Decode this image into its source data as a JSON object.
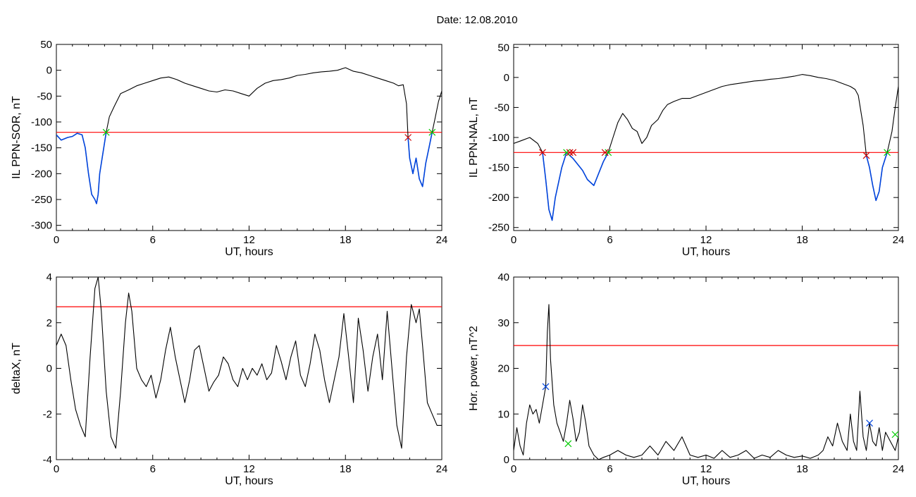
{
  "figure": {
    "title": "Date:  12.08.2010"
  },
  "chart_data": [
    {
      "type": "line",
      "xlabel": "UT, hours",
      "ylabel": "IL PPN-SOR, nT",
      "xlim": [
        0,
        24
      ],
      "ylim": [
        -310,
        50
      ],
      "xticks": [
        "0",
        "6",
        "12",
        "18",
        "24"
      ],
      "yticks": [
        "50",
        "0",
        "-50",
        "-100",
        "-150",
        "-200",
        "-250",
        "-300"
      ],
      "colors": {
        "line": "#000000",
        "event": "#0044dd",
        "threshold": "#ff0000",
        "start_marker": "#00cc00",
        "end_marker": "#cc0000"
      },
      "threshold": -120,
      "series": [
        {
          "x": [
            0,
            0.3,
            0.7,
            1.0,
            1.3,
            1.6,
            1.8,
            2.0,
            2.2,
            2.4,
            2.5,
            2.6,
            2.7,
            2.9,
            3.1,
            3.3,
            3.6,
            4.0,
            4.5,
            5.0,
            5.5,
            6.0,
            6.5,
            7.0,
            7.5,
            8.0,
            8.5,
            9.0,
            9.5,
            10.0,
            10.5,
            11.0,
            11.5,
            12.0,
            12.5,
            13.0,
            13.5,
            14.0,
            14.5,
            15.0,
            15.5,
            16.0,
            16.5,
            17.0,
            17.5,
            18.0,
            18.5,
            19.0,
            19.5,
            20.0,
            20.5,
            21.0,
            21.3,
            21.6,
            21.8,
            21.9,
            22.0,
            22.2,
            22.4,
            22.6,
            22.8,
            23.0,
            23.2,
            23.4,
            23.6,
            23.8,
            24.0
          ],
          "y": [
            -125,
            -135,
            -130,
            -128,
            -122,
            -125,
            -150,
            -200,
            -240,
            -250,
            -258,
            -240,
            -200,
            -160,
            -120,
            -90,
            -70,
            -45,
            -38,
            -30,
            -25,
            -20,
            -15,
            -13,
            -18,
            -25,
            -30,
            -35,
            -40,
            -42,
            -38,
            -40,
            -45,
            -50,
            -35,
            -25,
            -20,
            -18,
            -15,
            -10,
            -8,
            -5,
            -3,
            -2,
            0,
            5,
            -2,
            -5,
            -10,
            -15,
            -20,
            -25,
            -30,
            -28,
            -65,
            -130,
            -170,
            -200,
            -170,
            -210,
            -225,
            -180,
            -150,
            -120,
            -90,
            -60,
            -40
          ]
        },
        {
          "x": [
            0,
            0.3,
            0.7,
            1.0,
            1.3,
            1.6,
            1.8,
            2.0,
            2.2,
            2.4,
            2.5,
            2.6,
            2.7,
            2.9,
            3.1
          ],
          "y": [
            -125,
            -135,
            -130,
            -128,
            -122,
            -125,
            -150,
            -200,
            -240,
            -250,
            -258,
            -240,
            -200,
            -160,
            -120
          ]
        },
        {
          "x": [
            21.9,
            22.0,
            22.2,
            22.4,
            22.6,
            22.8,
            23.0,
            23.2,
            23.4
          ],
          "y": [
            -130,
            -170,
            -200,
            -170,
            -210,
            -225,
            -180,
            -150,
            -120
          ]
        }
      ],
      "markers": [
        {
          "x": 3.1,
          "y": -120,
          "kind": "start"
        },
        {
          "x": 21.9,
          "y": -130,
          "kind": "end"
        },
        {
          "x": 23.4,
          "y": -120,
          "kind": "start"
        }
      ]
    },
    {
      "type": "line",
      "xlabel": "UT, hours",
      "ylabel": "IL PPN-NAL, nT",
      "xlim": [
        0,
        24
      ],
      "ylim": [
        -255,
        55
      ],
      "xticks": [
        "0",
        "6",
        "12",
        "18",
        "24"
      ],
      "yticks": [
        "50",
        "0",
        "-50",
        "-100",
        "-150",
        "-200",
        "-250"
      ],
      "colors": {
        "line": "#000000",
        "event": "#0044dd",
        "threshold": "#ff0000",
        "start_marker": "#00cc00",
        "end_marker": "#cc0000"
      },
      "threshold": -125,
      "series": [
        {
          "x": [
            0,
            0.5,
            1.0,
            1.5,
            1.8,
            2.0,
            2.2,
            2.4,
            2.6,
            2.8,
            3.0,
            3.3,
            3.5,
            3.7,
            4.0,
            4.3,
            4.6,
            5.0,
            5.3,
            5.6,
            5.9,
            6.2,
            6.5,
            6.8,
            7.1,
            7.4,
            7.7,
            8.0,
            8.3,
            8.6,
            9.0,
            9.3,
            9.6,
            10.0,
            10.5,
            11.0,
            11.5,
            12.0,
            12.5,
            13.0,
            13.5,
            14.0,
            14.5,
            15.0,
            15.5,
            16.0,
            16.5,
            17.0,
            17.5,
            18.0,
            18.5,
            19.0,
            19.5,
            20.0,
            20.5,
            21.0,
            21.3,
            21.5,
            21.8,
            22.0,
            22.2,
            22.4,
            22.6,
            22.8,
            23.0,
            23.3,
            23.6,
            23.8,
            24.0
          ],
          "y": [
            -110,
            -105,
            -100,
            -110,
            -125,
            -170,
            -220,
            -238,
            -200,
            -175,
            -150,
            -125,
            -130,
            -135,
            -145,
            -155,
            -170,
            -180,
            -160,
            -140,
            -125,
            -100,
            -75,
            -60,
            -70,
            -85,
            -90,
            -110,
            -100,
            -80,
            -70,
            -55,
            -45,
            -40,
            -35,
            -35,
            -30,
            -25,
            -20,
            -15,
            -12,
            -10,
            -8,
            -6,
            -5,
            -3,
            -2,
            0,
            2,
            5,
            3,
            0,
            -2,
            -5,
            -10,
            -15,
            -20,
            -30,
            -80,
            -130,
            -150,
            -180,
            -205,
            -190,
            -150,
            -125,
            -90,
            -50,
            -15
          ]
        },
        {
          "x": [
            1.8,
            2.0,
            2.2,
            2.4,
            2.6,
            2.8,
            3.0,
            3.3
          ],
          "y": [
            -125,
            -170,
            -220,
            -238,
            -200,
            -175,
            -150,
            -125
          ]
        },
        {
          "x": [
            3.3,
            3.5,
            3.7,
            4.0,
            4.3,
            4.6,
            5.0,
            5.3,
            5.6,
            5.9
          ],
          "y": [
            -125,
            -130,
            -135,
            -145,
            -155,
            -170,
            -180,
            -160,
            -140,
            -125
          ]
        },
        {
          "x": [
            22.0,
            22.2,
            22.4,
            22.6,
            22.8,
            23.0,
            23.3
          ],
          "y": [
            -130,
            -150,
            -180,
            -205,
            -190,
            -150,
            -125
          ]
        }
      ],
      "markers": [
        {
          "x": 1.8,
          "y": -125,
          "kind": "end"
        },
        {
          "x": 3.3,
          "y": -125,
          "kind": "start"
        },
        {
          "x": 3.5,
          "y": -125,
          "kind": "end"
        },
        {
          "x": 3.7,
          "y": -125,
          "kind": "end"
        },
        {
          "x": 5.9,
          "y": -125,
          "kind": "start"
        },
        {
          "x": 5.7,
          "y": -125,
          "kind": "end"
        },
        {
          "x": 22.0,
          "y": -130,
          "kind": "end"
        },
        {
          "x": 23.3,
          "y": -125,
          "kind": "start"
        }
      ]
    },
    {
      "type": "line",
      "xlabel": "UT, hours",
      "ylabel": "deltaX, nT",
      "xlim": [
        0,
        24
      ],
      "ylim": [
        -4,
        4
      ],
      "xticks": [
        "0",
        "6",
        "12",
        "18",
        "24"
      ],
      "yticks": [
        "4",
        "2",
        "0",
        "-2",
        "-4"
      ],
      "colors": {
        "line": "#000000",
        "threshold": "#ff0000"
      },
      "threshold": 2.7,
      "series": [
        {
          "x": [
            0,
            0.3,
            0.6,
            0.9,
            1.2,
            1.5,
            1.8,
            2.1,
            2.4,
            2.6,
            2.8,
            3.1,
            3.4,
            3.7,
            4.0,
            4.3,
            4.5,
            4.7,
            5.0,
            5.3,
            5.6,
            5.9,
            6.2,
            6.5,
            6.8,
            7.1,
            7.4,
            7.7,
            8.0,
            8.3,
            8.6,
            8.9,
            9.2,
            9.5,
            9.8,
            10.1,
            10.4,
            10.7,
            11.0,
            11.3,
            11.6,
            11.9,
            12.2,
            12.5,
            12.8,
            13.1,
            13.4,
            13.7,
            14.0,
            14.3,
            14.6,
            14.9,
            15.2,
            15.5,
            15.8,
            16.1,
            16.4,
            16.7,
            17.0,
            17.3,
            17.6,
            17.9,
            18.2,
            18.5,
            18.8,
            19.1,
            19.4,
            19.7,
            20.0,
            20.3,
            20.6,
            20.9,
            21.2,
            21.5,
            21.8,
            22.1,
            22.4,
            22.6,
            22.8,
            23.1,
            23.4,
            23.7,
            24.0
          ],
          "y": [
            1.0,
            1.5,
            1.0,
            -0.5,
            -1.8,
            -2.5,
            -3.0,
            0.5,
            3.5,
            4.0,
            2.5,
            -1.0,
            -3.0,
            -3.5,
            -1.0,
            2.0,
            3.3,
            2.5,
            0.0,
            -0.5,
            -0.8,
            -0.3,
            -1.3,
            -0.5,
            0.8,
            1.8,
            0.5,
            -0.5,
            -1.5,
            -0.5,
            0.8,
            1.0,
            0.0,
            -1.0,
            -0.6,
            -0.3,
            0.5,
            0.2,
            -0.5,
            -0.8,
            0.0,
            -0.5,
            0.0,
            -0.3,
            0.2,
            -0.5,
            -0.2,
            1.0,
            0.3,
            -0.5,
            0.5,
            1.2,
            -0.3,
            -0.8,
            0.2,
            1.5,
            0.8,
            -0.5,
            -1.5,
            -0.5,
            0.5,
            2.4,
            0.5,
            -1.5,
            2.2,
            0.8,
            -1.0,
            0.5,
            1.5,
            -0.5,
            2.5,
            0.0,
            -2.5,
            -3.5,
            0.5,
            2.8,
            2.0,
            2.6,
            1.0,
            -1.5,
            -2.0,
            -2.5,
            -2.5
          ]
        }
      ]
    },
    {
      "type": "line",
      "xlabel": "UT, hours",
      "ylabel": "Hor. power, nT^2",
      "xlim": [
        0,
        24
      ],
      "ylim": [
        0,
        40
      ],
      "xticks": [
        "0",
        "6",
        "12",
        "18",
        "24"
      ],
      "yticks": [
        "40",
        "30",
        "20",
        "10",
        "0"
      ],
      "colors": {
        "line": "#000000",
        "threshold": "#ff0000",
        "start_marker": "#00cc00",
        "end_marker": "#0044dd"
      },
      "threshold": 25,
      "series": [
        {
          "x": [
            0,
            0.2,
            0.4,
            0.6,
            0.8,
            1.0,
            1.2,
            1.4,
            1.6,
            1.8,
            2.0,
            2.1,
            2.2,
            2.3,
            2.5,
            2.7,
            2.9,
            3.1,
            3.3,
            3.5,
            3.7,
            3.9,
            4.1,
            4.3,
            4.5,
            4.7,
            5.0,
            5.3,
            5.6,
            6.0,
            6.5,
            7.0,
            7.5,
            8.0,
            8.5,
            9.0,
            9.5,
            10.0,
            10.5,
            11.0,
            11.5,
            12.0,
            12.5,
            13.0,
            13.5,
            14.0,
            14.5,
            15.0,
            15.5,
            16.0,
            16.5,
            17.0,
            17.5,
            18.0,
            18.5,
            19.0,
            19.3,
            19.6,
            19.9,
            20.2,
            20.5,
            20.8,
            21.0,
            21.2,
            21.4,
            21.6,
            21.8,
            22.0,
            22.2,
            22.4,
            22.6,
            22.8,
            23.0,
            23.2,
            23.5,
            23.8,
            24.0
          ],
          "y": [
            2,
            7,
            3,
            1,
            8,
            12,
            10,
            11,
            8,
            12,
            16,
            28,
            34,
            22,
            12,
            8,
            6,
            4,
            8,
            13,
            9,
            4,
            6,
            12,
            8,
            3,
            1,
            0,
            0.5,
            1,
            2,
            1,
            0.5,
            1,
            3,
            1,
            4,
            2,
            5,
            1,
            0.5,
            1,
            0.3,
            2,
            0.5,
            1,
            2,
            0.3,
            1,
            0.5,
            2,
            1,
            0.5,
            0.8,
            0.3,
            1,
            2,
            5,
            3,
            8,
            4,
            2,
            10,
            4,
            2,
            15,
            5,
            2,
            8,
            4,
            3,
            7,
            2,
            6,
            4,
            2,
            5
          ]
        }
      ],
      "markers": [
        {
          "x": 2.0,
          "y": 16,
          "kind": "end"
        },
        {
          "x": 3.4,
          "y": 3.5,
          "kind": "start"
        },
        {
          "x": 22.2,
          "y": 8,
          "kind": "end"
        },
        {
          "x": 23.8,
          "y": 5.5,
          "kind": "start"
        }
      ]
    }
  ]
}
